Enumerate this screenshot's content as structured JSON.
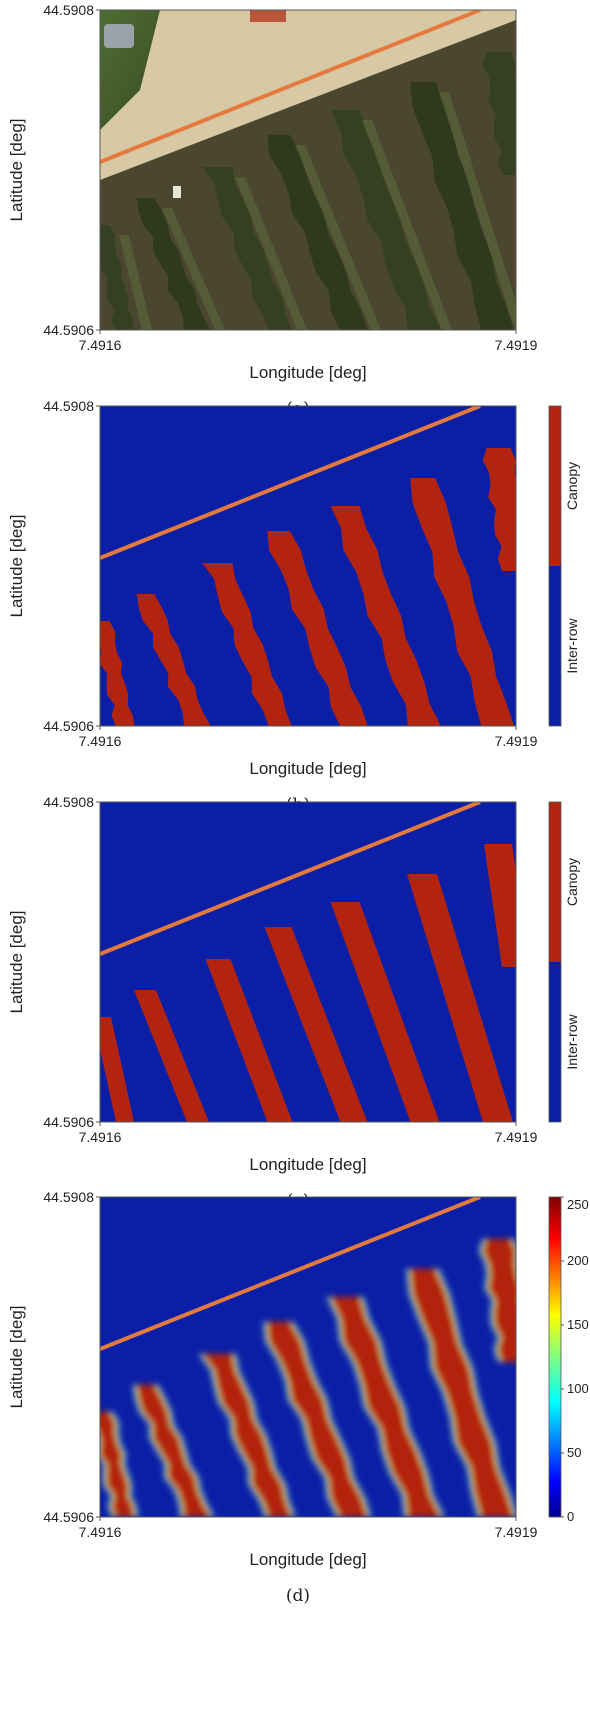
{
  "xlabel": "Longitude [deg]",
  "ylabel": "Latitude [deg]",
  "colors": {
    "canopy": "#b32410",
    "inter_row": "#0b1fa6",
    "path_line": "#e47a3e",
    "soil": "#d6c9a3",
    "shadow": "#3f3a25"
  },
  "chart_data": [
    {
      "type": "heatmap",
      "caption": "(a)",
      "xlabel": "Longitude [deg]",
      "ylabel": "Latitude [deg]",
      "x_ticks": [
        "7.4916",
        "7.4919"
      ],
      "y_ticks": [
        "44.5908",
        "44.5906"
      ],
      "xlim": [
        7.4916,
        7.4919
      ],
      "ylim": [
        44.5906,
        44.5908
      ],
      "colorbar": null
    },
    {
      "type": "heatmap",
      "caption": "(b)",
      "xlabel": "Longitude [deg]",
      "ylabel": "Latitude [deg]",
      "x_ticks": [
        "7.4916",
        "7.4919"
      ],
      "y_ticks": [
        "44.5908",
        "44.5906"
      ],
      "xlim": [
        7.4916,
        7.4919
      ],
      "ylim": [
        44.5906,
        44.5908
      ],
      "colorbar": {
        "kind": "categorical",
        "labels": [
          "Canopy",
          "Inter-row"
        ]
      }
    },
    {
      "type": "heatmap",
      "caption": "(c)",
      "xlabel": "Longitude [deg]",
      "ylabel": "Latitude [deg]",
      "x_ticks": [
        "7.4916",
        "7.4919"
      ],
      "y_ticks": [
        "44.5908",
        "44.5906"
      ],
      "xlim": [
        7.4916,
        7.4919
      ],
      "ylim": [
        44.5906,
        44.5908
      ],
      "colorbar": {
        "kind": "categorical",
        "labels": [
          "Canopy",
          "Inter-row"
        ]
      }
    },
    {
      "type": "heatmap",
      "caption": "(d)",
      "xlabel": "Longitude [deg]",
      "ylabel": "Latitude [deg]",
      "x_ticks": [
        "7.4916",
        "7.4919"
      ],
      "y_ticks": [
        "44.5908",
        "44.5906"
      ],
      "xlim": [
        7.4916,
        7.4919
      ],
      "ylim": [
        44.5906,
        44.5908
      ],
      "colorbar": {
        "kind": "continuous",
        "range": [
          0,
          250
        ],
        "ticks": [
          "250",
          "200",
          "150",
          "100",
          "50",
          "0"
        ]
      }
    }
  ]
}
